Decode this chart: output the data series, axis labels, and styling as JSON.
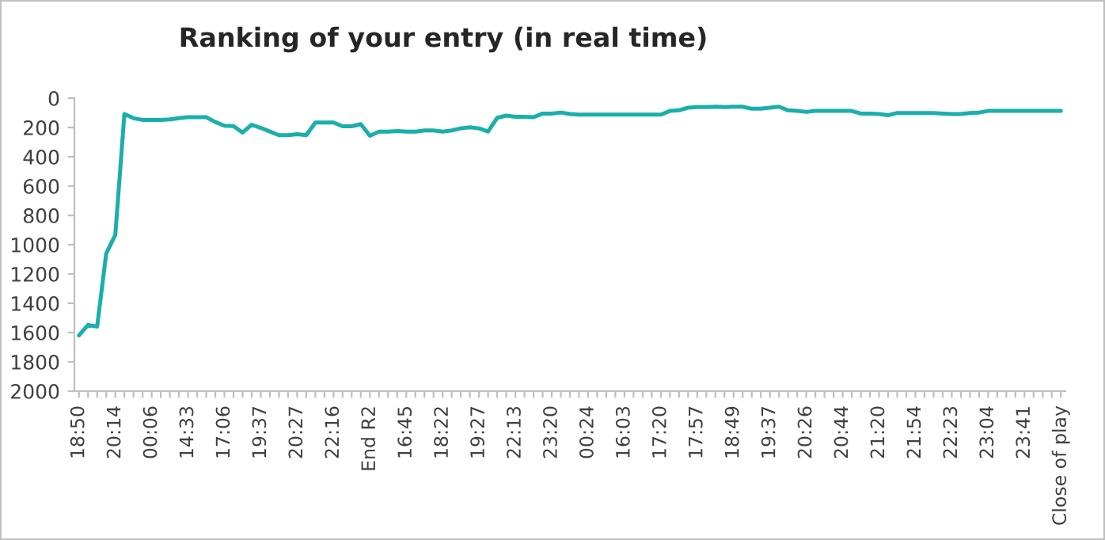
{
  "chart_data": {
    "type": "line",
    "title": "Ranking of your entry (in real time)",
    "categories": [
      "18:50",
      null,
      null,
      null,
      "20:14",
      null,
      null,
      null,
      "00:06",
      null,
      null,
      null,
      "14:33",
      null,
      null,
      null,
      "17:06",
      null,
      null,
      null,
      "19:37",
      null,
      null,
      null,
      "20:27",
      null,
      null,
      null,
      "22:16",
      null,
      null,
      null,
      "End R2",
      null,
      null,
      null,
      "16:45",
      null,
      null,
      null,
      "18:22",
      null,
      null,
      null,
      "19:27",
      null,
      null,
      null,
      "22:13",
      null,
      null,
      null,
      "23:20",
      null,
      null,
      null,
      "00:24",
      null,
      null,
      null,
      "16:03",
      null,
      null,
      null,
      "17:20",
      null,
      null,
      null,
      "17:57",
      null,
      null,
      null,
      "18:49",
      null,
      null,
      null,
      "19:37",
      null,
      null,
      null,
      "20:26",
      null,
      null,
      null,
      "20:44",
      null,
      null,
      null,
      "21:20",
      null,
      null,
      null,
      "21:54",
      null,
      null,
      null,
      "22:23",
      null,
      null,
      null,
      "23:04",
      null,
      null,
      null,
      "23:41",
      null,
      null,
      null,
      "Close of play"
    ],
    "series": [
      {
        "color": "#1aafaa",
        "values": [
          1620,
          1548,
          1559,
          1060,
          933,
          108,
          137,
          148,
          148,
          148,
          145,
          137,
          130,
          130,
          130,
          163,
          188,
          190,
          235,
          181,
          203,
          228,
          253,
          253,
          246,
          253,
          166,
          166,
          166,
          192,
          192,
          177,
          257,
          228,
          228,
          224,
          228,
          228,
          220,
          220,
          228,
          220,
          206,
          199,
          206,
          228,
          134,
          119,
          127,
          127,
          130,
          105,
          105,
          98,
          108,
          112,
          112,
          112,
          112,
          112,
          112,
          112,
          112,
          112,
          112,
          87,
          83,
          65,
          61,
          61,
          58,
          61,
          58,
          58,
          72,
          72,
          65,
          58,
          83,
          87,
          94,
          87,
          87,
          87,
          87,
          87,
          105,
          105,
          108,
          116,
          101,
          101,
          101,
          101,
          101,
          105,
          108,
          108,
          101,
          98,
          87,
          87,
          87,
          87,
          87,
          87,
          87,
          87,
          87
        ]
      }
    ],
    "ylim": [
      2000,
      0
    ],
    "yticks": [
      0,
      200,
      400,
      600,
      800,
      1000,
      1200,
      1400,
      1600,
      1800,
      2000
    ],
    "grid": false,
    "legend": false,
    "marker": "none",
    "line_style": "solid"
  }
}
